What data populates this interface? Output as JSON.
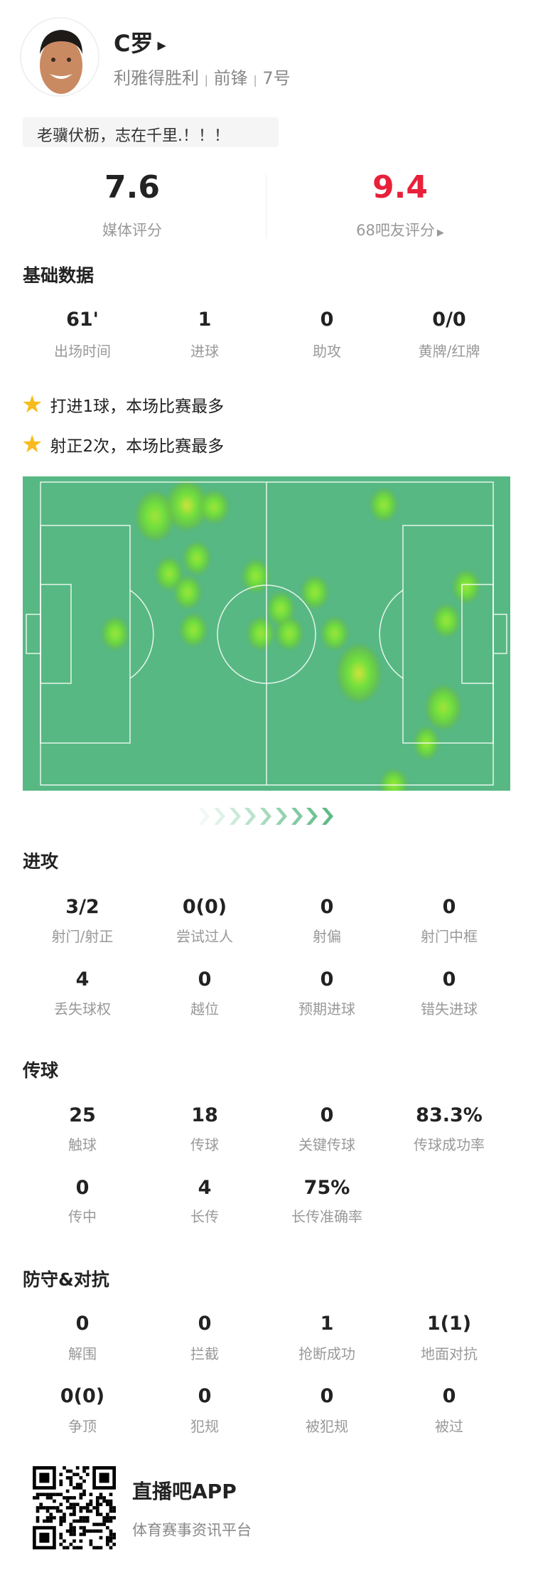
{
  "player": {
    "name": "C罗",
    "team": "利雅得胜利",
    "position": "前锋",
    "number": "7号",
    "separator": "|",
    "quote": "老骥伏枥，志在千里.！！！"
  },
  "ratings": {
    "media": {
      "value": "7.6",
      "label": "媒体评分"
    },
    "fans": {
      "value": "9.4",
      "label": "68吧友评分",
      "color": "#e8203a"
    }
  },
  "basic": {
    "title": "基础数据",
    "stats": [
      {
        "value": "61'",
        "label": "出场时间"
      },
      {
        "value": "1",
        "label": "进球"
      },
      {
        "value": "0",
        "label": "助攻"
      },
      {
        "value": "0/0",
        "label": "黄牌/红牌"
      }
    ]
  },
  "highlights": [
    "打进1球，本场比赛最多",
    "射正2次，本场比赛最多"
  ],
  "attack": {
    "title": "进攻",
    "stats": [
      {
        "value": "3/2",
        "label": "射门/射正"
      },
      {
        "value": "0(0)",
        "label": "尝试过人"
      },
      {
        "value": "0",
        "label": "射偏"
      },
      {
        "value": "0",
        "label": "射门中框"
      },
      {
        "value": "4",
        "label": "丢失球权"
      },
      {
        "value": "0",
        "label": "越位"
      },
      {
        "value": "0",
        "label": "预期进球"
      },
      {
        "value": "0",
        "label": "错失进球"
      }
    ]
  },
  "passing": {
    "title": "传球",
    "stats": [
      {
        "value": "25",
        "label": "触球"
      },
      {
        "value": "18",
        "label": "传球"
      },
      {
        "value": "0",
        "label": "关键传球"
      },
      {
        "value": "83.3%",
        "label": "传球成功率"
      },
      {
        "value": "0",
        "label": "传中"
      },
      {
        "value": "4",
        "label": "长传"
      },
      {
        "value": "75%",
        "label": "长传准确率"
      }
    ]
  },
  "defense": {
    "title": "防守&对抗",
    "stats": [
      {
        "value": "0",
        "label": "解围"
      },
      {
        "value": "0",
        "label": "拦截"
      },
      {
        "value": "1",
        "label": "抢断成功"
      },
      {
        "value": "1(1)",
        "label": "地面对抗"
      },
      {
        "value": "0(0)",
        "label": "争顶"
      },
      {
        "value": "0",
        "label": "犯规"
      },
      {
        "value": "0",
        "label": "被犯规"
      },
      {
        "value": "0",
        "label": "被过"
      }
    ]
  },
  "footer": {
    "app_name": "直播吧APP",
    "tagline": "体育赛事资讯平台"
  },
  "colors": {
    "pitch": "#57b883",
    "accent_red": "#e8203a",
    "star": "#f8bb1a"
  },
  "icons": {
    "star": "star-icon",
    "play": "triangle-right-icon"
  }
}
